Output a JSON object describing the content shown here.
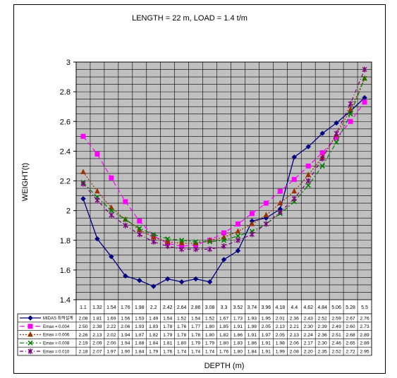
{
  "chart_data": {
    "type": "line",
    "title": "LENGTH = 22 m,  LOAD = 1.4 t/m",
    "xlabel": "DEPTH (m)",
    "ylabel": "WEIGHT(t)",
    "ylim": [
      1.4,
      3.0
    ],
    "yticks": [
      "1.4",
      "1.6",
      "1.8",
      "2",
      "2.2",
      "2.4",
      "2.6",
      "2.8",
      "3"
    ],
    "grid": true,
    "legend": "data table below plot",
    "categories": [
      "1.1",
      "1.32",
      "1.54",
      "1.76",
      "1.98",
      "2.2",
      "2.42",
      "2.64",
      "2.86",
      "3.08",
      "3.3",
      "3.52",
      "3.74",
      "3.96",
      "4.18",
      "4.4",
      "4.62",
      "4.84",
      "5.06",
      "5.28",
      "5.5"
    ],
    "series": [
      {
        "name": "MIDAS 최적설계",
        "color": "#000080",
        "dash": "",
        "marker": "diamond",
        "values": [
          2.08,
          1.81,
          1.69,
          1.56,
          1.53,
          1.49,
          1.54,
          1.52,
          1.54,
          1.52,
          1.67,
          1.73,
          1.93,
          1.95,
          2.01,
          2.36,
          2.43,
          2.52,
          2.59,
          2.67,
          2.76
        ],
        "labels": [
          "2.08",
          "1.81",
          "1.69",
          "1.56",
          "1.53",
          "1.49",
          "1.54",
          "1.52",
          "1.54",
          "1.52",
          "1.67",
          "1.73",
          "1.93",
          "1.95",
          "2.01",
          "2.36",
          "2.43",
          "2.52",
          "2.59",
          "2.67",
          "2.76"
        ]
      },
      {
        "name": "Emax = 0.004",
        "color": "#ff00ff",
        "dash": "7,4",
        "marker": "square",
        "values": [
          2.5,
          2.38,
          2.22,
          2.06,
          1.93,
          1.83,
          1.78,
          1.76,
          1.77,
          1.8,
          1.85,
          1.91,
          1.98,
          2.05,
          2.13,
          2.21,
          2.3,
          2.39,
          2.49,
          2.6,
          2.73
        ],
        "labels": [
          "2.50",
          "2.38",
          "2.22",
          "2.06",
          "1.93",
          "1.83",
          "1.78",
          "1.76",
          "1.77",
          "1.80",
          "1.85",
          "1.91",
          "1.98",
          "2.05",
          "2.13",
          "2.21",
          "2.30",
          "2.39",
          "2.49",
          "2.60",
          "2.73"
        ]
      },
      {
        "name": "Emax = 0.006",
        "color": "#993300",
        "dash": "2,2",
        "marker": "triangle",
        "values": [
          2.26,
          2.13,
          2.02,
          1.94,
          1.87,
          1.82,
          1.79,
          1.78,
          1.78,
          1.8,
          1.82,
          1.86,
          1.91,
          1.97,
          2.05,
          2.13,
          2.24,
          2.36,
          2.51,
          2.68,
          2.89
        ],
        "labels": [
          "2.26",
          "2.13",
          "2.02",
          "1.94",
          "1.87",
          "1.82",
          "1.79",
          "1.78",
          "1.78",
          "1.80",
          "1.82",
          "1.86",
          "1.91",
          "1.97",
          "2.05",
          "2.13",
          "2.24",
          "2.36",
          "2.51",
          "2.68",
          "2.89"
        ]
      },
      {
        "name": "Emax = 0.008",
        "color": "#008000",
        "dash": "6,3,2,3",
        "marker": "x",
        "values": [
          2.19,
          2.09,
          2.0,
          1.94,
          1.88,
          1.84,
          1.81,
          1.8,
          1.79,
          1.79,
          1.8,
          1.83,
          1.86,
          1.91,
          1.98,
          2.06,
          2.17,
          2.3,
          2.46,
          2.65,
          2.89
        ],
        "labels": [
          "2.19",
          "2.09",
          "2.00",
          "1.94",
          "1.88",
          "1.84",
          "1.81",
          "1.80",
          "1.79",
          "1.79",
          "1.80",
          "1.83",
          "1.86",
          "1.91",
          "1.98",
          "2.06",
          "2.17",
          "2.30",
          "2.46",
          "2.65",
          "2.89"
        ]
      },
      {
        "name": "Emax = 0.010",
        "color": "#800080",
        "dash": "5,3,1,3",
        "marker": "star",
        "values": [
          2.18,
          2.07,
          1.97,
          1.9,
          1.84,
          1.79,
          1.76,
          1.74,
          1.74,
          1.74,
          1.76,
          1.8,
          1.84,
          1.91,
          1.99,
          2.08,
          2.2,
          2.35,
          2.52,
          2.72,
          2.95
        ],
        "labels": [
          "2.18",
          "2.07",
          "1.97",
          "1.90",
          "1.84",
          "1.79",
          "1.76",
          "1.74",
          "1.74",
          "1.74",
          "1.76",
          "1.80",
          "1.84",
          "1.91",
          "1.99",
          "2.08",
          "2.20",
          "2.35",
          "2.52",
          "2.72",
          "2.95"
        ]
      }
    ]
  }
}
